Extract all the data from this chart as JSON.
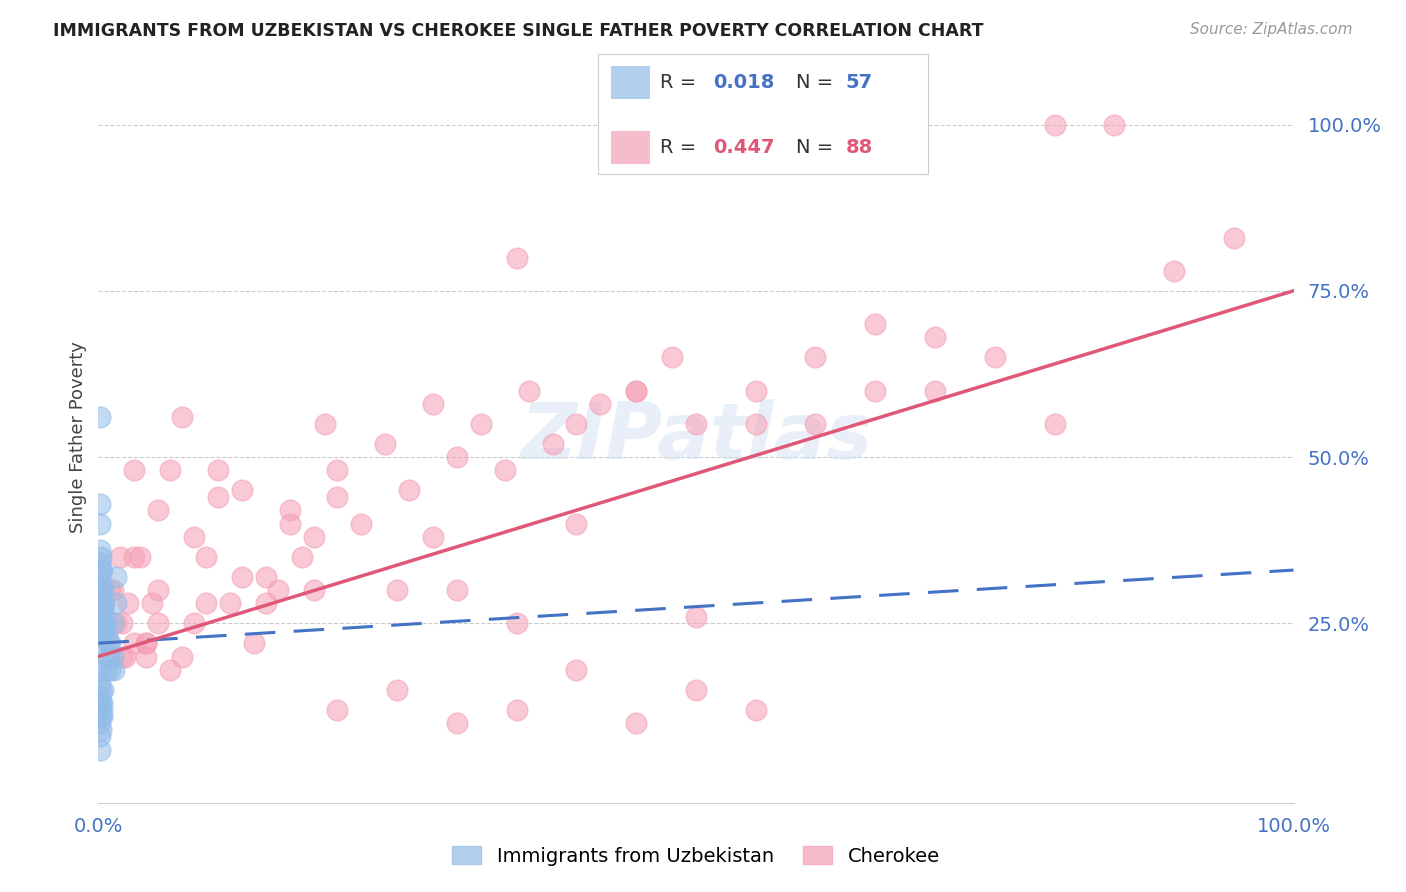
{
  "title": "IMMIGRANTS FROM UZBEKISTAN VS CHEROKEE SINGLE FATHER POVERTY CORRELATION CHART",
  "source": "Source: ZipAtlas.com",
  "ylabel": "Single Father Poverty",
  "ytick_labels": [
    "100.0%",
    "75.0%",
    "50.0%",
    "25.0%"
  ],
  "ytick_positions": [
    1.0,
    0.75,
    0.5,
    0.25
  ],
  "uzbek_color": "#92bce8",
  "cherokee_color": "#f5a0b5",
  "uzbek_line_color": "#4472c4",
  "cherokee_line_color": "#e05878",
  "watermark": "ZIPatlas",
  "uzbek_line": [
    0.0,
    0.22,
    1.0,
    0.33
  ],
  "cherokee_line": [
    0.0,
    0.2,
    1.0,
    0.75
  ],
  "uzbek_scatter_x": [
    0.001,
    0.001,
    0.001,
    0.001,
    0.001,
    0.001,
    0.001,
    0.001,
    0.001,
    0.001,
    0.002,
    0.002,
    0.002,
    0.002,
    0.002,
    0.002,
    0.002,
    0.002,
    0.003,
    0.003,
    0.003,
    0.003,
    0.003,
    0.004,
    0.004,
    0.004,
    0.005,
    0.005,
    0.006,
    0.007,
    0.008,
    0.009,
    0.01,
    0.01,
    0.012,
    0.013,
    0.001,
    0.001,
    0.001,
    0.001,
    0.001,
    0.001,
    0.001,
    0.002,
    0.002,
    0.002,
    0.002,
    0.003,
    0.003,
    0.015,
    0.015,
    0.012,
    0.008,
    0.006,
    0.004,
    0.003
  ],
  "uzbek_scatter_y": [
    0.56,
    0.43,
    0.4,
    0.36,
    0.34,
    0.32,
    0.3,
    0.29,
    0.28,
    0.27,
    0.35,
    0.33,
    0.31,
    0.29,
    0.27,
    0.25,
    0.24,
    0.22,
    0.33,
    0.3,
    0.28,
    0.26,
    0.24,
    0.3,
    0.27,
    0.25,
    0.28,
    0.24,
    0.25,
    0.23,
    0.22,
    0.2,
    0.22,
    0.18,
    0.2,
    0.18,
    0.18,
    0.16,
    0.14,
    0.12,
    0.1,
    0.08,
    0.06,
    0.15,
    0.13,
    0.11,
    0.09,
    0.13,
    0.11,
    0.32,
    0.28,
    0.25,
    0.2,
    0.18,
    0.15,
    0.12
  ],
  "cherokee_scatter_x": [
    0.01,
    0.02,
    0.03,
    0.04,
    0.05,
    0.06,
    0.07,
    0.08,
    0.09,
    0.1,
    0.11,
    0.12,
    0.13,
    0.14,
    0.15,
    0.16,
    0.17,
    0.18,
    0.19,
    0.2,
    0.22,
    0.24,
    0.26,
    0.28,
    0.3,
    0.32,
    0.34,
    0.36,
    0.38,
    0.4,
    0.42,
    0.45,
    0.48,
    0.5,
    0.55,
    0.6,
    0.65,
    0.7,
    0.8,
    0.85,
    0.9,
    0.95,
    0.02,
    0.03,
    0.04,
    0.05,
    0.06,
    0.07,
    0.08,
    0.09,
    0.1,
    0.12,
    0.14,
    0.16,
    0.18,
    0.2,
    0.25,
    0.3,
    0.35,
    0.4,
    0.45,
    0.5,
    0.28,
    0.35,
    0.005,
    0.008,
    0.012,
    0.015,
    0.018,
    0.022,
    0.025,
    0.03,
    0.035,
    0.04,
    0.045,
    0.05,
    0.55,
    0.6,
    0.65,
    0.7,
    0.75,
    0.8,
    0.2,
    0.25,
    0.3,
    0.35,
    0.4,
    0.45,
    0.5,
    0.55
  ],
  "cherokee_scatter_y": [
    0.3,
    0.2,
    0.48,
    0.22,
    0.42,
    0.18,
    0.56,
    0.25,
    0.35,
    0.48,
    0.28,
    0.45,
    0.22,
    0.32,
    0.3,
    0.42,
    0.35,
    0.38,
    0.55,
    0.48,
    0.4,
    0.52,
    0.45,
    0.38,
    0.5,
    0.55,
    0.48,
    0.6,
    0.52,
    0.55,
    0.58,
    0.6,
    0.65,
    0.55,
    0.6,
    0.65,
    0.7,
    0.68,
    1.0,
    1.0,
    0.78,
    0.83,
    0.25,
    0.35,
    0.22,
    0.3,
    0.48,
    0.2,
    0.38,
    0.28,
    0.44,
    0.32,
    0.28,
    0.4,
    0.3,
    0.44,
    0.3,
    0.3,
    0.25,
    0.4,
    0.6,
    0.26,
    0.58,
    0.8,
    0.28,
    0.22,
    0.3,
    0.25,
    0.35,
    0.2,
    0.28,
    0.22,
    0.35,
    0.2,
    0.28,
    0.25,
    0.55,
    0.55,
    0.6,
    0.6,
    0.65,
    0.55,
    0.12,
    0.15,
    0.1,
    0.12,
    0.18,
    0.1,
    0.15,
    0.12
  ],
  "xlim": [
    0.0,
    1.0
  ],
  "ylim": [
    -0.02,
    1.08
  ]
}
